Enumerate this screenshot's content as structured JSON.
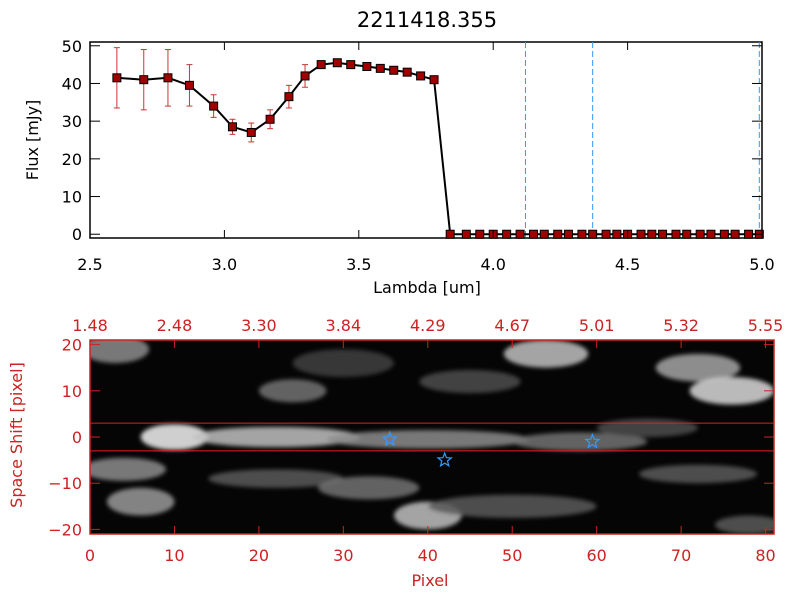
{
  "title": "2211418.355",
  "chart_data": [
    {
      "type": "line",
      "title": "2211418.355",
      "xlabel": "Lambda [um]",
      "ylabel": "Flux [mJy]",
      "xlim": [
        2.5,
        5.0
      ],
      "ylim": [
        -1,
        51
      ],
      "xticks": [
        "2.5",
        "3.0",
        "3.5",
        "4.0",
        "4.5",
        "5.0"
      ],
      "xtick_values": [
        2.5,
        3.0,
        3.5,
        4.0,
        4.5,
        5.0
      ],
      "yticks": [
        "0",
        "10",
        "20",
        "30",
        "40",
        "50"
      ],
      "ytick_values": [
        0,
        10,
        20,
        30,
        40,
        50
      ],
      "series": [
        {
          "x": [
            2.6,
            2.7,
            2.79,
            2.87,
            2.96,
            3.03,
            3.1,
            3.17,
            3.24,
            3.3,
            3.36,
            3.42,
            3.47,
            3.53,
            3.58,
            3.63,
            3.68,
            3.73,
            3.78,
            3.84,
            3.9,
            3.95,
            4.0,
            4.05,
            4.1,
            4.15,
            4.19,
            4.24,
            4.28,
            4.33,
            4.37,
            4.42,
            4.46,
            4.5,
            4.55,
            4.59,
            4.63,
            4.68,
            4.72,
            4.77,
            4.81,
            4.86,
            4.9,
            4.95,
            4.99
          ],
          "y": [
            41.5,
            41.0,
            41.5,
            39.5,
            34.0,
            28.5,
            27.0,
            30.5,
            36.5,
            42.0,
            45.0,
            45.5,
            45.0,
            44.5,
            44.0,
            43.5,
            43.0,
            42.0,
            41.0,
            0,
            0,
            0,
            0,
            0,
            0,
            0,
            0,
            0,
            0,
            0,
            0,
            0,
            0,
            0,
            0,
            0,
            0,
            0,
            0,
            0,
            0,
            0,
            0,
            0,
            0
          ],
          "yerr": [
            8.0,
            8.0,
            7.5,
            5.5,
            3.0,
            2.0,
            2.5,
            2.5,
            3.0,
            3.0,
            1.0,
            0.5,
            0.5,
            0.5,
            0.5,
            0.5,
            0.5,
            0.5,
            0.5,
            0,
            0,
            0,
            0,
            0,
            0,
            0,
            0,
            0,
            0,
            0,
            0,
            0,
            0,
            0,
            0,
            0,
            0,
            0,
            0,
            0,
            0,
            0,
            0,
            0,
            0
          ]
        }
      ],
      "vlines": [
        4.12,
        4.37,
        4.99
      ],
      "colors": {
        "line": "#000000",
        "marker": "#a00000",
        "errorbar": "#cc3333",
        "vline": "#3399ff",
        "zeroline": "#cc3333"
      }
    },
    {
      "type": "heatmap",
      "xlabel": "Pixel",
      "ylabel": "Space Shift [pixel]",
      "xlim": [
        0,
        81
      ],
      "ylim": [
        -21,
        21
      ],
      "xticks": [
        "0",
        "10",
        "20",
        "30",
        "40",
        "50",
        "60",
        "70",
        "80"
      ],
      "xtick_values": [
        0,
        10,
        20,
        30,
        40,
        50,
        60,
        70,
        80
      ],
      "yticks": [
        "−20",
        "−10",
        "0",
        "10",
        "20"
      ],
      "ytick_values": [
        -20,
        -10,
        0,
        10,
        20
      ],
      "top_xticks": [
        "1.48",
        "2.48",
        "3.30",
        "3.84",
        "4.29",
        "4.67",
        "5.01",
        "5.32",
        "5.55"
      ],
      "hlines": [
        3,
        -3
      ],
      "stars": [
        {
          "x": 35.5,
          "y": -0.5
        },
        {
          "x": 42,
          "y": -5
        },
        {
          "x": 59.5,
          "y": -1
        }
      ],
      "blobs": [
        {
          "x": 10,
          "y": 0,
          "sx": 4,
          "sy": 2.8,
          "v": 0.95
        },
        {
          "x": 22,
          "y": 0,
          "sx": 10,
          "sy": 2.2,
          "v": 0.75
        },
        {
          "x": 40,
          "y": -0.5,
          "sx": 12,
          "sy": 2.0,
          "v": 0.55
        },
        {
          "x": 58,
          "y": -1,
          "sx": 8,
          "sy": 2.0,
          "v": 0.45
        },
        {
          "x": 3,
          "y": 19,
          "sx": 4,
          "sy": 3,
          "v": 0.55
        },
        {
          "x": 54,
          "y": 18,
          "sx": 5,
          "sy": 3,
          "v": 0.75
        },
        {
          "x": 72,
          "y": 15,
          "sx": 5,
          "sy": 3,
          "v": 0.65
        },
        {
          "x": 76,
          "y": 10,
          "sx": 5,
          "sy": 3,
          "v": 0.85
        },
        {
          "x": 24,
          "y": 10,
          "sx": 4,
          "sy": 2.5,
          "v": 0.45
        },
        {
          "x": 45,
          "y": 12,
          "sx": 6,
          "sy": 2.5,
          "v": 0.3
        },
        {
          "x": 4,
          "y": -7,
          "sx": 5,
          "sy": 2.5,
          "v": 0.55
        },
        {
          "x": 6,
          "y": -14,
          "sx": 4,
          "sy": 3,
          "v": 0.6
        },
        {
          "x": 22,
          "y": -9,
          "sx": 8,
          "sy": 2,
          "v": 0.35
        },
        {
          "x": 33,
          "y": -11,
          "sx": 6,
          "sy": 2.5,
          "v": 0.45
        },
        {
          "x": 40,
          "y": -17,
          "sx": 4,
          "sy": 3,
          "v": 0.75
        },
        {
          "x": 50,
          "y": -15,
          "sx": 10,
          "sy": 2.5,
          "v": 0.35
        },
        {
          "x": 72,
          "y": -8,
          "sx": 7,
          "sy": 2,
          "v": 0.35
        },
        {
          "x": 78,
          "y": -19,
          "sx": 4,
          "sy": 2,
          "v": 0.35
        },
        {
          "x": 66,
          "y": 2,
          "sx": 6,
          "sy": 2,
          "v": 0.3
        },
        {
          "x": 30,
          "y": 16,
          "sx": 6,
          "sy": 3,
          "v": 0.25
        }
      ],
      "colors": {
        "frame": "#cc2222",
        "hline": "#dd2222",
        "star": "#3399ff"
      }
    }
  ]
}
